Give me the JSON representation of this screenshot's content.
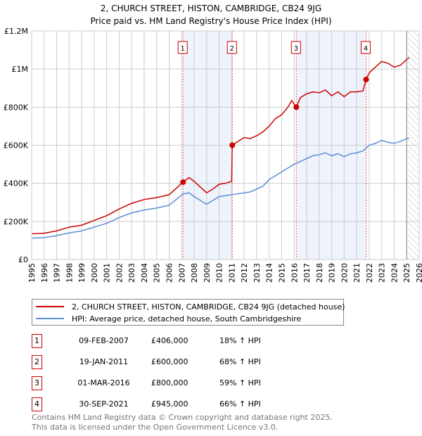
{
  "chart_data": {
    "type": "line",
    "title": "2, CHURCH STREET, HISTON, CAMBRIDGE, CB24 9JG",
    "subtitle": "Price paid vs. HM Land Registry's House Price Index (HPI)",
    "xlabel": "",
    "ylabel": "",
    "xlim": [
      1995,
      2026
    ],
    "ylim": [
      0,
      1200000
    ],
    "x_ticks": [
      "1995",
      "1996",
      "1997",
      "1998",
      "1999",
      "2000",
      "2001",
      "2002",
      "2003",
      "2004",
      "2005",
      "2006",
      "2007",
      "2008",
      "2009",
      "2010",
      "2011",
      "2012",
      "2013",
      "2014",
      "2015",
      "2016",
      "2017",
      "2018",
      "2019",
      "2020",
      "2021",
      "2022",
      "2023",
      "2024",
      "2025",
      "2026"
    ],
    "y_ticks": [
      {
        "value": 0,
        "label": "£0"
      },
      {
        "value": 200000,
        "label": "£200K"
      },
      {
        "value": 400000,
        "label": "£400K"
      },
      {
        "value": 600000,
        "label": "£600K"
      },
      {
        "value": 800000,
        "label": "£800K"
      },
      {
        "value": 1000000,
        "label": "£1M"
      },
      {
        "value": 1200000,
        "label": "£1.2M"
      }
    ],
    "grid": true,
    "series": [
      {
        "name": "2, CHURCH STREET, HISTON, CAMBRIDGE, CB24 9JG (detached house)",
        "color": "#cc0000",
        "x": [
          1995,
          1996,
          1997,
          1998,
          1999,
          2000,
          2001,
          2002,
          2003,
          2004,
          2005,
          2006,
          2007.1,
          2007.6,
          2008,
          2008.5,
          2009,
          2009.5,
          2010,
          2010.5,
          2011.0,
          2011.05,
          2011.5,
          2012,
          2012.5,
          2013,
          2013.5,
          2014,
          2014.5,
          2015,
          2015.5,
          2015.8,
          2016.17,
          2016.5,
          2017,
          2017.5,
          2018,
          2018.5,
          2019,
          2019.5,
          2020,
          2020.5,
          2021,
          2021.5,
          2021.75,
          2022,
          2022.5,
          2023,
          2023.5,
          2024,
          2024.5,
          2025,
          2025.2
        ],
        "y": [
          135000,
          138000,
          150000,
          170000,
          180000,
          205000,
          230000,
          265000,
          295000,
          315000,
          325000,
          340000,
          406000,
          430000,
          410000,
          380000,
          350000,
          370000,
          395000,
          400000,
          410000,
          600000,
          620000,
          640000,
          635000,
          650000,
          670000,
          700000,
          740000,
          760000,
          800000,
          835000,
          800000,
          850000,
          870000,
          880000,
          875000,
          890000,
          860000,
          880000,
          855000,
          880000,
          880000,
          885000,
          945000,
          980000,
          1010000,
          1040000,
          1030000,
          1010000,
          1020000,
          1050000,
          1060000
        ]
      },
      {
        "name": "HPI: Average price, detached house, South Cambridgeshire",
        "color": "#5b8fd6",
        "x": [
          1995,
          1996,
          1997,
          1998,
          1999,
          2000,
          2001,
          2002,
          2003,
          2004,
          2005,
          2006,
          2007.1,
          2007.6,
          2008,
          2008.5,
          2009,
          2009.5,
          2010,
          2010.5,
          2011,
          2011.5,
          2012,
          2012.5,
          2013,
          2013.5,
          2014,
          2014.5,
          2015,
          2015.5,
          2016,
          2016.5,
          2017,
          2017.5,
          2018,
          2018.5,
          2019,
          2019.5,
          2020,
          2020.5,
          2021,
          2021.5,
          2022,
          2022.5,
          2023,
          2023.5,
          2024,
          2024.5,
          2025,
          2025.2
        ],
        "y": [
          112000,
          115000,
          125000,
          140000,
          150000,
          170000,
          190000,
          220000,
          245000,
          260000,
          270000,
          285000,
          344000,
          350000,
          330000,
          310000,
          290000,
          310000,
          330000,
          335000,
          340000,
          345000,
          350000,
          355000,
          370000,
          385000,
          420000,
          440000,
          460000,
          480000,
          500000,
          515000,
          530000,
          545000,
          550000,
          560000,
          545000,
          555000,
          540000,
          555000,
          560000,
          570000,
          600000,
          610000,
          625000,
          615000,
          610000,
          620000,
          635000,
          640000
        ]
      }
    ],
    "sales": [
      {
        "label": "1",
        "x": 2007.11,
        "price": 406000,
        "date": "09-FEB-2007",
        "price_text": "£406,000",
        "hpi": "18% ↑ HPI"
      },
      {
        "label": "2",
        "x": 2011.05,
        "price": 600000,
        "date": "19-JAN-2011",
        "price_text": "£600,000",
        "hpi": "68% ↑ HPI"
      },
      {
        "label": "3",
        "x": 2016.17,
        "price": 800000,
        "date": "01-MAR-2016",
        "price_text": "£800,000",
        "hpi": "59% ↑ HPI"
      },
      {
        "label": "4",
        "x": 2021.75,
        "price": 945000,
        "date": "30-SEP-2021",
        "price_text": "£945,000",
        "hpi": "66% ↑ HPI"
      }
    ],
    "shaded_ranges": [
      [
        2007.11,
        2011.05
      ],
      [
        2016.17,
        2021.75
      ]
    ],
    "forecast_start": 2025.0,
    "legend_placement": "bottom"
  },
  "footer": {
    "line1": "Contains HM Land Registry data © Crown copyright and database right 2025.",
    "line2": "This data is licensed under the Open Government Licence v3.0."
  }
}
